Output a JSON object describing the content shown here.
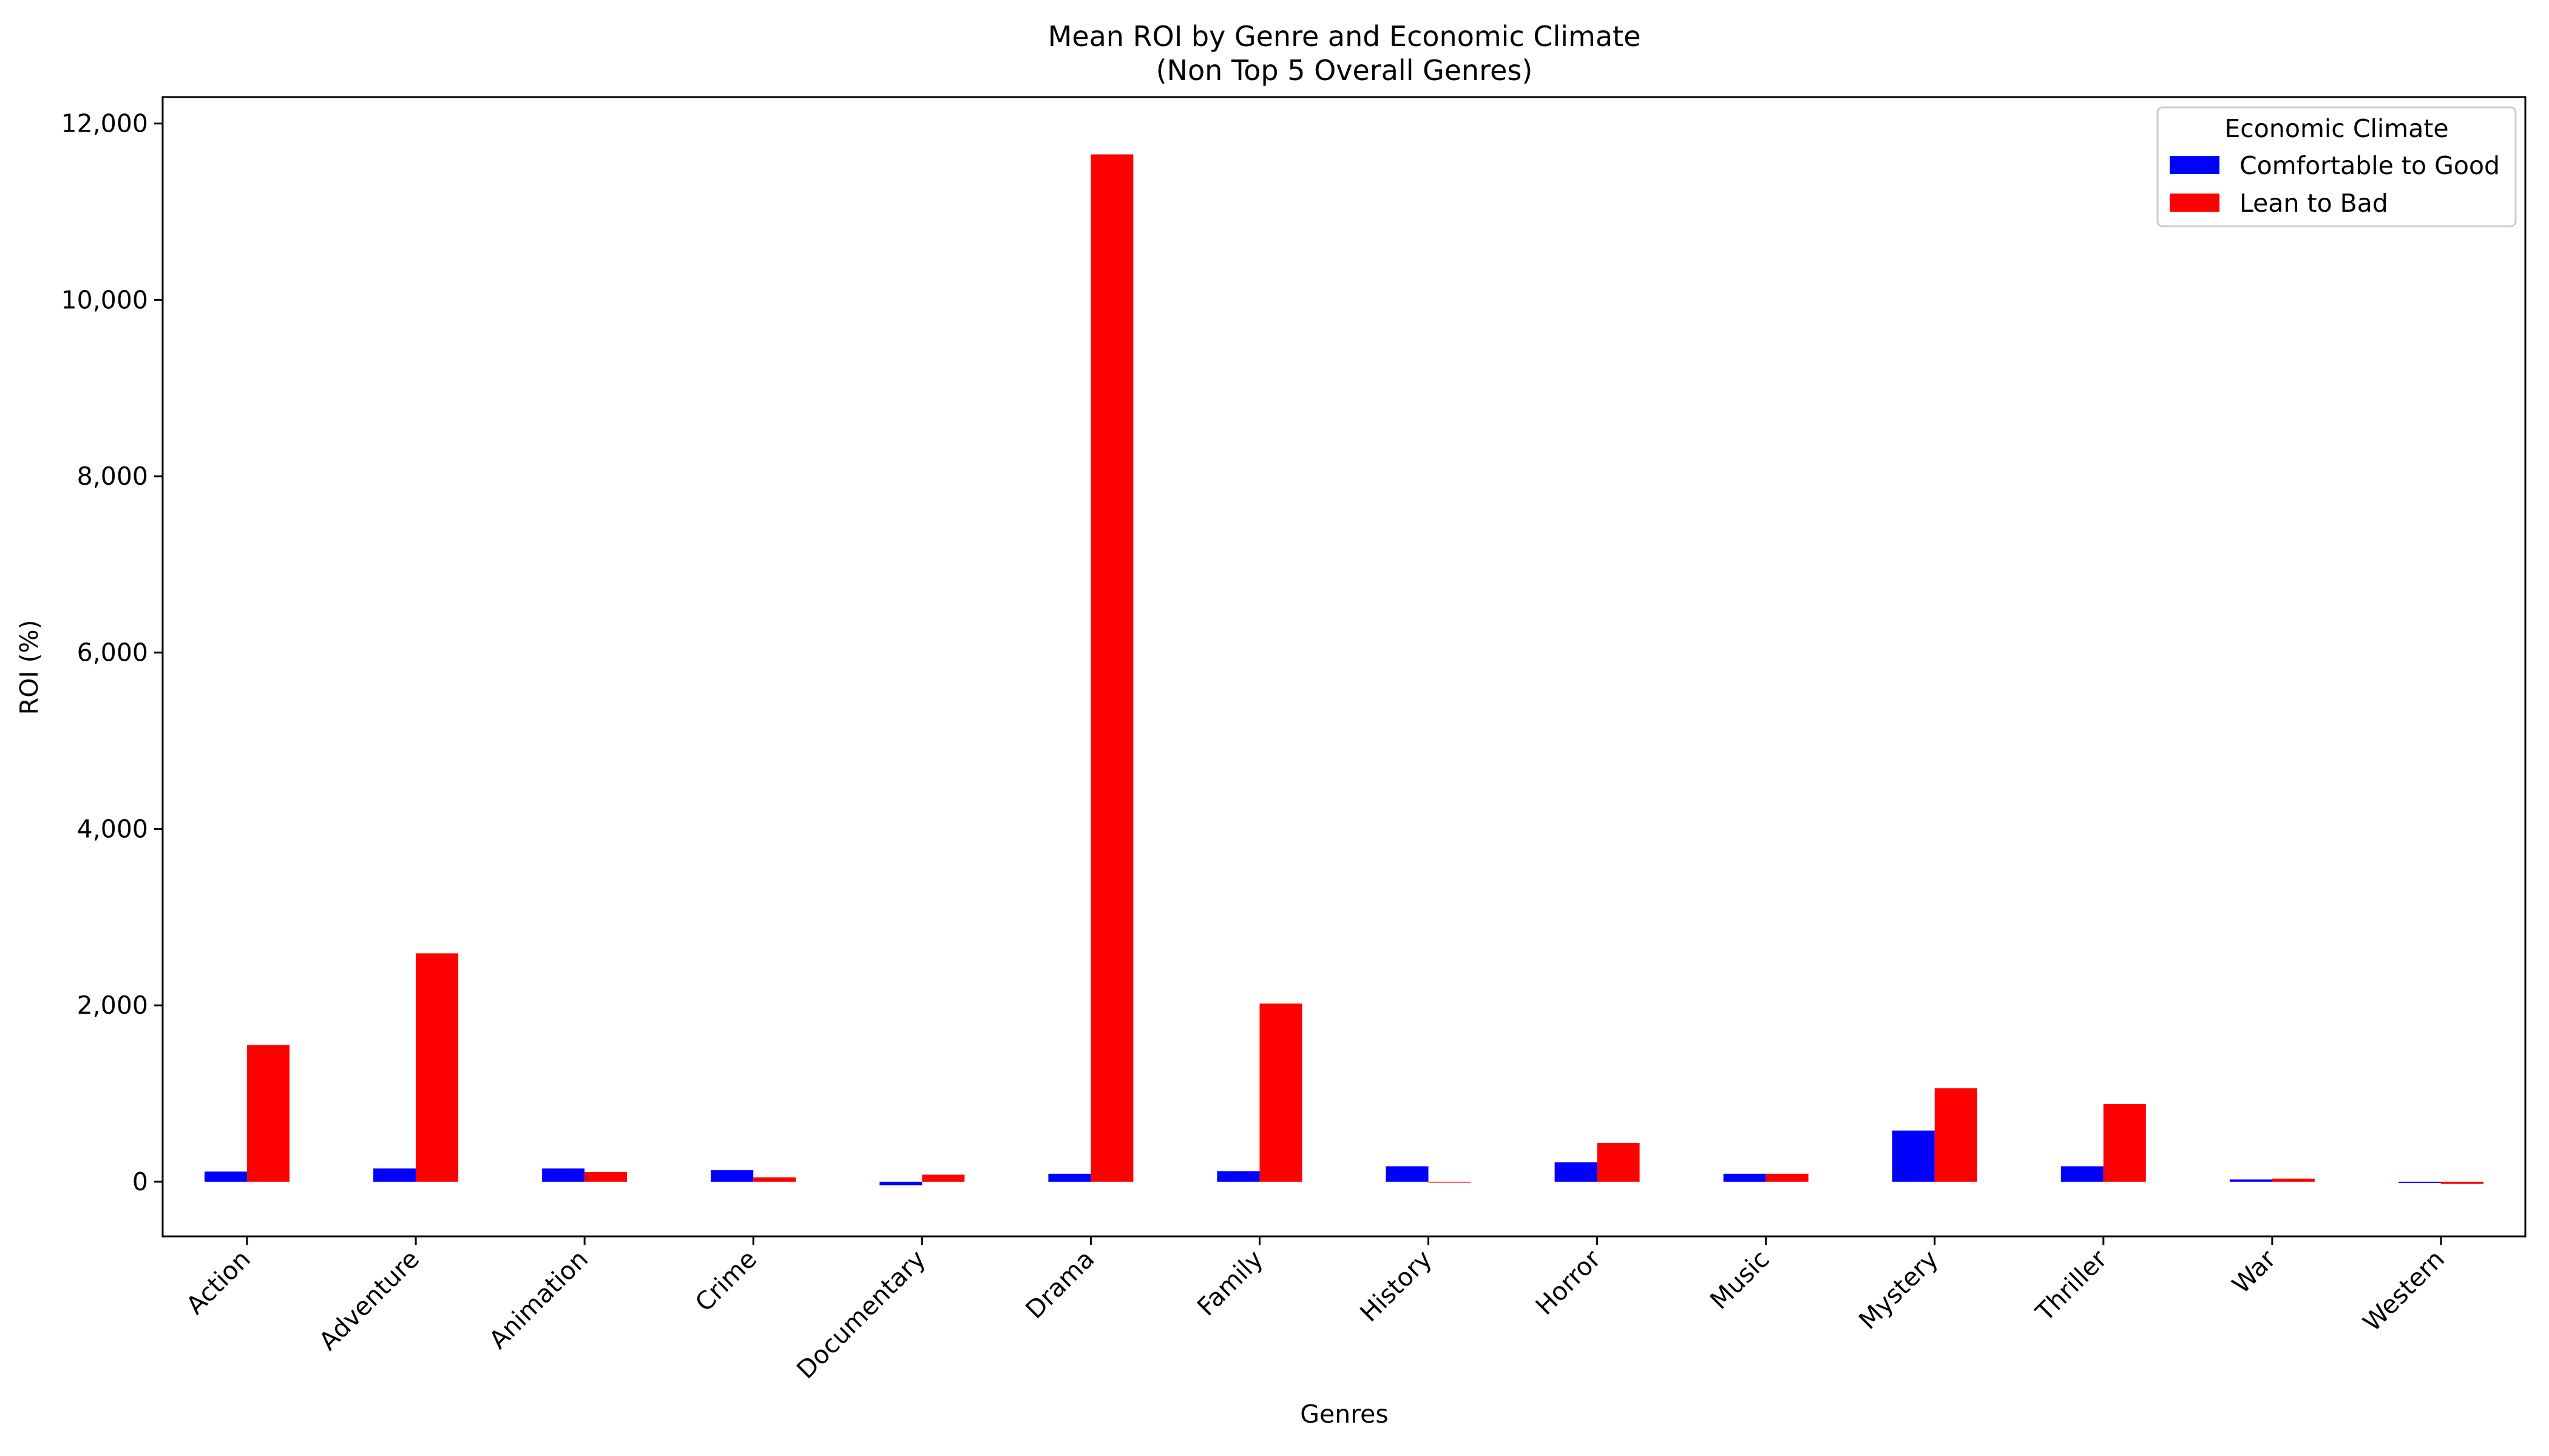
{
  "chart_data": {
    "type": "bar",
    "title": "Mean ROI by Genre and Economic Climate",
    "subtitle": "(Non Top 5 Overall Genres)",
    "xlabel": "Genres",
    "ylabel": "ROI (%)",
    "ylim": [
      -620,
      12300
    ],
    "yticks": [
      0,
      2000,
      4000,
      6000,
      8000,
      10000,
      12000
    ],
    "ytick_labels": [
      "0",
      "2,000",
      "4,000",
      "6,000",
      "8,000",
      "10,000",
      "12,000"
    ],
    "categories": [
      "Action",
      "Adventure",
      "Animation",
      "Crime",
      "Documentary",
      "Drama",
      "Family",
      "History",
      "Horror",
      "Music",
      "Mystery",
      "Thriller",
      "War",
      "Western"
    ],
    "series": [
      {
        "name": "Comfortable to Good",
        "color": "#0000ff",
        "values": [
          115,
          150,
          150,
          130,
          -40,
          90,
          120,
          175,
          220,
          90,
          580,
          175,
          25,
          -15
        ]
      },
      {
        "name": "Lean to Bad",
        "color": "#ff0000",
        "values": [
          1550,
          2590,
          110,
          50,
          80,
          11650,
          2020,
          -10,
          440,
          90,
          1060,
          880,
          35,
          -25
        ]
      }
    ],
    "legend": {
      "title": "Economic Climate",
      "position": "top-right"
    },
    "grid": false
  }
}
